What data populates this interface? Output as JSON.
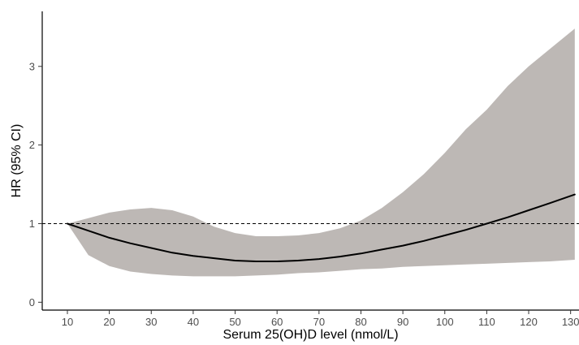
{
  "chart_data": {
    "type": "line",
    "title": "",
    "xlabel": "Serum 25(OH)D level (nmol/L)",
    "ylabel": "HR (95% CI)",
    "xlim": [
      4,
      132
    ],
    "ylim": [
      -0.1,
      3.7
    ],
    "xticks": [
      10,
      20,
      30,
      40,
      50,
      60,
      70,
      80,
      90,
      100,
      110,
      120,
      130
    ],
    "yticks": [
      0,
      1,
      2,
      3
    ],
    "grid": false,
    "legend": "none",
    "reference_line": {
      "y": 1,
      "style": "dashed"
    },
    "colors": {
      "line": "#000000",
      "band": "#bdb8b5",
      "reference": "#000000"
    },
    "series": [
      {
        "x": [
          10,
          15,
          20,
          25,
          30,
          35,
          40,
          45,
          50,
          55,
          60,
          65,
          70,
          75,
          80,
          85,
          90,
          95,
          100,
          105,
          110,
          115,
          120,
          125,
          131
        ],
        "values": [
          1.0,
          0.91,
          0.82,
          0.75,
          0.69,
          0.63,
          0.59,
          0.56,
          0.53,
          0.52,
          0.52,
          0.53,
          0.55,
          0.58,
          0.62,
          0.67,
          0.72,
          0.78,
          0.85,
          0.92,
          1.0,
          1.08,
          1.17,
          1.26,
          1.37
        ],
        "lower": [
          1.0,
          0.6,
          0.46,
          0.39,
          0.36,
          0.34,
          0.33,
          0.33,
          0.33,
          0.34,
          0.35,
          0.37,
          0.38,
          0.4,
          0.42,
          0.43,
          0.45,
          0.46,
          0.47,
          0.48,
          0.49,
          0.5,
          0.51,
          0.52,
          0.54
        ],
        "upper": [
          1.0,
          1.07,
          1.14,
          1.18,
          1.2,
          1.17,
          1.09,
          0.96,
          0.88,
          0.84,
          0.84,
          0.85,
          0.88,
          0.94,
          1.04,
          1.2,
          1.4,
          1.63,
          1.9,
          2.2,
          2.45,
          2.75,
          3.0,
          3.22,
          3.48
        ]
      }
    ]
  }
}
